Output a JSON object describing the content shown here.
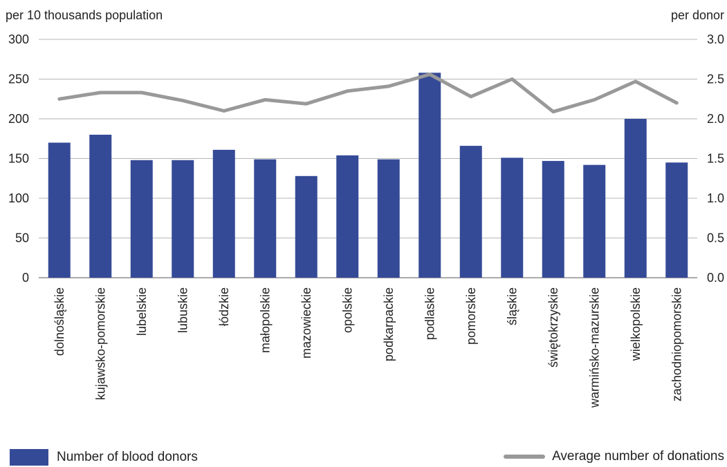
{
  "chart_data": {
    "type": "bar+line",
    "left_axis_title": "per 10 thousands population",
    "right_axis_title": "per donor",
    "categories": [
      "dolnośląskie",
      "kujawsko-pomorskie",
      "lubelskie",
      "lubuskie",
      "łódzkie",
      "małopolskie",
      "mazowieckie",
      "opolskie",
      "podkarpackie",
      "podlaskie",
      "pomorskie",
      "śląskie",
      "świętokrzyskie",
      "warmińsko-mazurskie",
      "wielkopolskie",
      "zachodniopomorskie"
    ],
    "left_ylim": [
      0,
      300
    ],
    "left_yticks": [
      "0",
      "50",
      "100",
      "150",
      "200",
      "250",
      "300"
    ],
    "right_ylim": [
      0,
      3.0
    ],
    "right_yticks": [
      "0.0",
      "0.5",
      "1.0",
      "1.5",
      "2.0",
      "2.5",
      "3.0"
    ],
    "grid": true,
    "legend_placement": "bottom",
    "series": [
      {
        "name": "Number of blood donors",
        "type": "bar",
        "axis": "left",
        "color": "#354a97",
        "values": [
          170,
          180,
          148,
          148,
          161,
          149,
          128,
          154,
          149,
          258,
          166,
          151,
          147,
          142,
          200,
          145
        ]
      },
      {
        "name": "Average number of donations",
        "type": "line",
        "axis": "right",
        "color": "#999999",
        "values": [
          2.25,
          2.33,
          2.33,
          2.23,
          2.1,
          2.24,
          2.19,
          2.35,
          2.41,
          2.56,
          2.28,
          2.5,
          2.09,
          2.24,
          2.47,
          2.2
        ]
      }
    ]
  }
}
